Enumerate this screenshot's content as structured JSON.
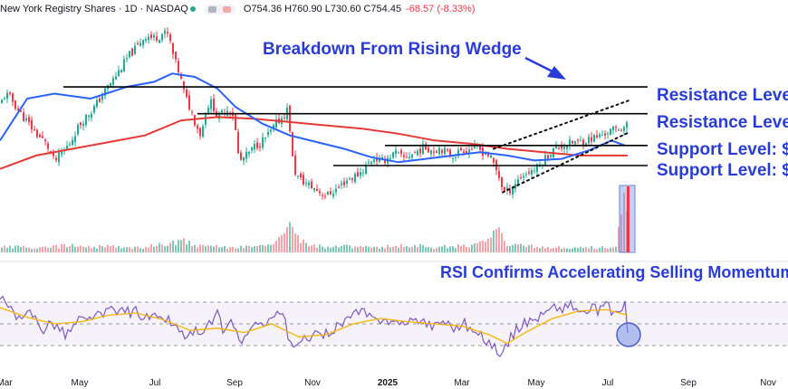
{
  "header": {
    "symbol": "New York Registry Shares · 1D · NASDAQ",
    "open_label": "O",
    "open": "754.36",
    "high_label": "H",
    "high": "760.90",
    "low_label": "L",
    "low": "730.60",
    "close_label": "C",
    "close": "754.45",
    "change": "-68.57 (-8.33%)"
  },
  "annotations": {
    "wedge": "Breakdown From Rising Wedge",
    "resistance_1": "Resistance Level",
    "resistance_2": "Resistance Level",
    "support_1": "Support Level: $",
    "support_2": "Support Level: $",
    "rsi": "RSI Confirms Accelerating Selling Momentum"
  },
  "colors": {
    "up": "#22ab94",
    "down": "#f23645",
    "ma_fast": "#2962ff",
    "ma_slow": "#e53935",
    "rsi": "#7e57c2",
    "rsi_ma": "#f5b400",
    "annotation": "#2a3cd6",
    "level": "#000000"
  },
  "chart_data": [
    {
      "type": "candlestick",
      "title": "",
      "x_ticks": [
        "Mar",
        "May",
        "Jul",
        "Sep",
        "Nov",
        "2025",
        "Mar",
        "May",
        "Jul",
        "Sep",
        "Nov"
      ],
      "price_path": [
        [
          0,
          0.56
        ],
        [
          6,
          0.63
        ],
        [
          12,
          0.6
        ],
        [
          18,
          0.55
        ],
        [
          24,
          0.5
        ],
        [
          30,
          0.46
        ],
        [
          36,
          0.42
        ],
        [
          42,
          0.38
        ],
        [
          48,
          0.35
        ],
        [
          54,
          0.3
        ],
        [
          60,
          0.22
        ],
        [
          66,
          0.26
        ],
        [
          72,
          0.3
        ],
        [
          78,
          0.34
        ],
        [
          84,
          0.41
        ],
        [
          90,
          0.46
        ],
        [
          96,
          0.5
        ],
        [
          102,
          0.53
        ],
        [
          108,
          0.58
        ],
        [
          114,
          0.63
        ],
        [
          120,
          0.68
        ],
        [
          126,
          0.72
        ],
        [
          132,
          0.77
        ],
        [
          138,
          0.82
        ],
        [
          144,
          0.87
        ],
        [
          150,
          0.9
        ],
        [
          156,
          0.95
        ],
        [
          162,
          0.98
        ],
        [
          168,
          0.96
        ],
        [
          174,
          0.97
        ],
        [
          180,
          0.99
        ],
        [
          186,
          0.98
        ],
        [
          192,
          0.84
        ],
        [
          198,
          0.75
        ],
        [
          204,
          0.62
        ],
        [
          210,
          0.54
        ],
        [
          216,
          0.45
        ],
        [
          222,
          0.38
        ],
        [
          228,
          0.55
        ],
        [
          234,
          0.58
        ],
        [
          240,
          0.48
        ],
        [
          246,
          0.52
        ],
        [
          252,
          0.54
        ],
        [
          258,
          0.5
        ],
        [
          264,
          0.22
        ],
        [
          270,
          0.25
        ],
        [
          276,
          0.28
        ],
        [
          282,
          0.32
        ],
        [
          288,
          0.34
        ],
        [
          294,
          0.37
        ],
        [
          300,
          0.41
        ],
        [
          306,
          0.46
        ],
        [
          312,
          0.49
        ],
        [
          318,
          0.54
        ],
        [
          324,
          0.18
        ],
        [
          330,
          0.12
        ],
        [
          336,
          0.1
        ],
        [
          342,
          0.08
        ],
        [
          348,
          0.06
        ],
        [
          354,
          0.04
        ],
        [
          360,
          0.02
        ],
        [
          366,
          0.04
        ],
        [
          372,
          0.06
        ],
        [
          378,
          0.09
        ],
        [
          384,
          0.12
        ],
        [
          390,
          0.13
        ],
        [
          396,
          0.15
        ],
        [
          402,
          0.18
        ],
        [
          408,
          0.22
        ],
        [
          414,
          0.25
        ],
        [
          420,
          0.22
        ],
        [
          426,
          0.24
        ],
        [
          432,
          0.26
        ],
        [
          438,
          0.28
        ],
        [
          444,
          0.24
        ],
        [
          450,
          0.26
        ],
        [
          456,
          0.27
        ],
        [
          462,
          0.29
        ],
        [
          468,
          0.31
        ],
        [
          474,
          0.3
        ],
        [
          480,
          0.29
        ],
        [
          486,
          0.31
        ],
        [
          492,
          0.28
        ],
        [
          498,
          0.26
        ],
        [
          504,
          0.27
        ],
        [
          510,
          0.3
        ],
        [
          516,
          0.29
        ],
        [
          522,
          0.31
        ],
        [
          528,
          0.3
        ],
        [
          534,
          0.28
        ],
        [
          540,
          0.26
        ],
        [
          546,
          0.2
        ],
        [
          552,
          0.12
        ],
        [
          556,
          0.04
        ],
        [
          562,
          0.05
        ],
        [
          568,
          0.09
        ],
        [
          574,
          0.13
        ],
        [
          580,
          0.15
        ],
        [
          586,
          0.17
        ],
        [
          592,
          0.18
        ],
        [
          598,
          0.22
        ],
        [
          604,
          0.26
        ],
        [
          610,
          0.29
        ],
        [
          616,
          0.31
        ],
        [
          622,
          0.32
        ],
        [
          628,
          0.33
        ],
        [
          634,
          0.34
        ],
        [
          640,
          0.34
        ],
        [
          646,
          0.35
        ],
        [
          652,
          0.36
        ],
        [
          658,
          0.37
        ],
        [
          664,
          0.38
        ],
        [
          670,
          0.4
        ],
        [
          676,
          0.41
        ],
        [
          682,
          0.42
        ],
        [
          688,
          0.43
        ],
        [
          692,
          0.44
        ],
        [
          694,
          0.38
        ]
      ],
      "ma_fast_path": [
        [
          0,
          0.35
        ],
        [
          30,
          0.6
        ],
        [
          60,
          0.63
        ],
        [
          100,
          0.6
        ],
        [
          140,
          0.67
        ],
        [
          170,
          0.7
        ],
        [
          190,
          0.75
        ],
        [
          215,
          0.73
        ],
        [
          240,
          0.66
        ],
        [
          260,
          0.55
        ],
        [
          290,
          0.45
        ],
        [
          320,
          0.38
        ],
        [
          350,
          0.34
        ],
        [
          380,
          0.3
        ],
        [
          410,
          0.25
        ],
        [
          440,
          0.22
        ],
        [
          470,
          0.24
        ],
        [
          500,
          0.26
        ],
        [
          530,
          0.28
        ],
        [
          560,
          0.26
        ],
        [
          590,
          0.23
        ],
        [
          620,
          0.24
        ],
        [
          650,
          0.29
        ],
        [
          675,
          0.35
        ],
        [
          690,
          0.32
        ]
      ],
      "ma_slow_path": [
        [
          0,
          0.18
        ],
        [
          40,
          0.26
        ],
        [
          80,
          0.3
        ],
        [
          120,
          0.34
        ],
        [
          160,
          0.38
        ],
        [
          200,
          0.47
        ],
        [
          240,
          0.49
        ],
        [
          280,
          0.48
        ],
        [
          320,
          0.46
        ],
        [
          360,
          0.44
        ],
        [
          400,
          0.42
        ],
        [
          440,
          0.39
        ],
        [
          480,
          0.35
        ],
        [
          520,
          0.33
        ],
        [
          560,
          0.3
        ],
        [
          600,
          0.28
        ],
        [
          640,
          0.26
        ],
        [
          680,
          0.26
        ],
        [
          693,
          0.26
        ]
      ],
      "levels": [
        {
          "name": "resistance_1",
          "y": 0.67,
          "x_from": 70,
          "x_to": 715
        },
        {
          "name": "resistance_2",
          "y": 0.51,
          "x_from": 218,
          "x_to": 715
        },
        {
          "name": "support_1",
          "y": 0.32,
          "x_from": 425,
          "x_to": 715
        },
        {
          "name": "support_2",
          "y": 0.2,
          "x_from": 368,
          "x_to": 715
        }
      ],
      "wedge": {
        "upper": [
          [
            545,
            0.3
          ],
          [
            695,
            0.59
          ]
        ],
        "lower": [
          [
            555,
            0.04
          ],
          [
            695,
            0.4
          ]
        ]
      },
      "volume_path": [
        [
          0,
          0.08
        ],
        [
          20,
          0.1
        ],
        [
          40,
          0.06
        ],
        [
          60,
          0.09
        ],
        [
          80,
          0.12
        ],
        [
          100,
          0.08
        ],
        [
          120,
          0.1
        ],
        [
          140,
          0.07
        ],
        [
          160,
          0.09
        ],
        [
          180,
          0.13
        ],
        [
          200,
          0.2
        ],
        [
          220,
          0.1
        ],
        [
          240,
          0.09
        ],
        [
          260,
          0.08
        ],
        [
          280,
          0.11
        ],
        [
          300,
          0.1
        ],
        [
          320,
          0.62
        ],
        [
          325,
          0.25
        ],
        [
          340,
          0.12
        ],
        [
          360,
          0.09
        ],
        [
          380,
          0.1
        ],
        [
          400,
          0.08
        ],
        [
          420,
          0.09
        ],
        [
          440,
          0.1
        ],
        [
          460,
          0.12
        ],
        [
          480,
          0.08
        ],
        [
          500,
          0.1
        ],
        [
          520,
          0.12
        ],
        [
          540,
          0.2
        ],
        [
          552,
          0.38
        ],
        [
          560,
          0.12
        ],
        [
          580,
          0.1
        ],
        [
          600,
          0.09
        ],
        [
          620,
          0.08
        ],
        [
          640,
          0.07
        ],
        [
          660,
          0.08
        ],
        [
          680,
          0.09
        ],
        [
          692,
          1.0
        ]
      ]
    },
    {
      "type": "line",
      "title": "",
      "series": [
        {
          "values": [
            [
              0,
              72
            ],
            [
              8,
              68
            ],
            [
              16,
              58
            ],
            [
              24,
              50
            ],
            [
              32,
              62
            ],
            [
              40,
              55
            ],
            [
              48,
              45
            ],
            [
              56,
              52
            ],
            [
              64,
              48
            ],
            [
              72,
              40
            ],
            [
              80,
              46
            ],
            [
              88,
              55
            ],
            [
              96,
              52
            ],
            [
              104,
              60
            ],
            [
              112,
              56
            ],
            [
              120,
              64
            ],
            [
              128,
              58
            ],
            [
              136,
              66
            ],
            [
              144,
              60
            ],
            [
              152,
              62
            ],
            [
              160,
              55
            ],
            [
              168,
              58
            ],
            [
              176,
              52
            ],
            [
              184,
              56
            ],
            [
              192,
              48
            ],
            [
              200,
              42
            ],
            [
              208,
              38
            ],
            [
              216,
              44
            ],
            [
              224,
              36
            ],
            [
              232,
              52
            ],
            [
              240,
              58
            ],
            [
              248,
              42
            ],
            [
              256,
              55
            ],
            [
              264,
              34
            ],
            [
              272,
              38
            ],
            [
              280,
              46
            ],
            [
              288,
              50
            ],
            [
              296,
              55
            ],
            [
              304,
              58
            ],
            [
              312,
              62
            ],
            [
              320,
              30
            ],
            [
              328,
              28
            ],
            [
              336,
              35
            ],
            [
              344,
              40
            ],
            [
              352,
              38
            ],
            [
              360,
              42
            ],
            [
              368,
              45
            ],
            [
              376,
              50
            ],
            [
              384,
              55
            ],
            [
              392,
              58
            ],
            [
              400,
              62
            ],
            [
              408,
              56
            ],
            [
              416,
              52
            ],
            [
              424,
              58
            ],
            [
              432,
              50
            ],
            [
              440,
              54
            ],
            [
              448,
              48
            ],
            [
              456,
              52
            ],
            [
              464,
              56
            ],
            [
              472,
              50
            ],
            [
              480,
              48
            ],
            [
              488,
              54
            ],
            [
              496,
              50
            ],
            [
              504,
              46
            ],
            [
              512,
              52
            ],
            [
              520,
              44
            ],
            [
              528,
              40
            ],
            [
              536,
              36
            ],
            [
              544,
              30
            ],
            [
              552,
              22
            ],
            [
              558,
              28
            ],
            [
              566,
              40
            ],
            [
              574,
              48
            ],
            [
              582,
              52
            ],
            [
              590,
              55
            ],
            [
              598,
              58
            ],
            [
              606,
              62
            ],
            [
              614,
              66
            ],
            [
              622,
              64
            ],
            [
              630,
              68
            ],
            [
              638,
              62
            ],
            [
              646,
              60
            ],
            [
              654,
              64
            ],
            [
              662,
              62
            ],
            [
              670,
              66
            ],
            [
              678,
              60
            ],
            [
              686,
              63
            ],
            [
              690,
              66
            ],
            [
              693,
              46
            ]
          ]
        },
        {
          "values": [
            [
              0,
              65
            ],
            [
              30,
              56
            ],
            [
              60,
              50
            ],
            [
              90,
              52
            ],
            [
              120,
              58
            ],
            [
              150,
              60
            ],
            [
              180,
              54
            ],
            [
              210,
              44
            ],
            [
              240,
              46
            ],
            [
              270,
              42
            ],
            [
              300,
              50
            ],
            [
              330,
              38
            ],
            [
              360,
              40
            ],
            [
              390,
              50
            ],
            [
              420,
              55
            ],
            [
              450,
              52
            ],
            [
              480,
              50
            ],
            [
              510,
              48
            ],
            [
              540,
              40
            ],
            [
              560,
              32
            ],
            [
              580,
              42
            ],
            [
              610,
              55
            ],
            [
              640,
              62
            ],
            [
              670,
              63
            ],
            [
              693,
              58
            ]
          ]
        }
      ],
      "levels": [
        70,
        50,
        30
      ],
      "ylim": [
        20,
        80
      ]
    }
  ]
}
